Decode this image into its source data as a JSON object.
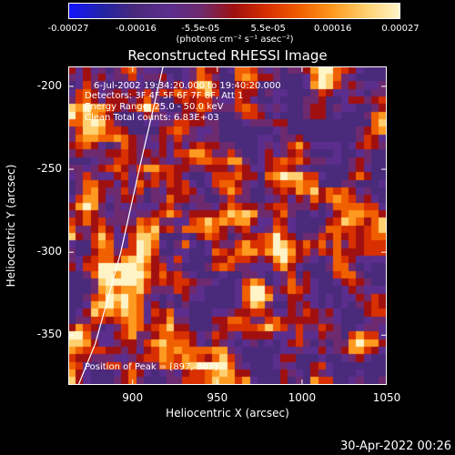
{
  "colorbar": {
    "tick_labels": [
      "-0.00027",
      "-0.00016",
      "-5.5e-05",
      "5.5e-05",
      "0.00016",
      "0.00027"
    ],
    "tick_values": [
      -0.00027,
      -0.00016,
      -5.5e-05,
      5.5e-05,
      0.00016,
      0.00027
    ],
    "range": [
      -0.00027,
      0.00027
    ],
    "unit_label": "(photons cm⁻² s⁻¹ asec⁻²)"
  },
  "chart_data": {
    "type": "heatmap",
    "title": "Reconstructed RHESSI Image",
    "xlabel": "Heliocentric X (arcsec)",
    "ylabel": "Heliocentric Y (arcsec)",
    "xlim": [
      862,
      1050
    ],
    "ylim": [
      -380,
      -188
    ],
    "x_ticks": [
      900,
      950,
      1000,
      1050
    ],
    "y_ticks": [
      -200,
      -250,
      -300,
      -350
    ],
    "x_tick_labels": [
      "900",
      "950",
      "1000",
      "1050"
    ],
    "y_tick_labels": [
      "-200",
      "-250",
      "-300",
      "-350"
    ],
    "colormap": [
      "#1414ff",
      "#2323a8",
      "#4a2a7a",
      "#5b2e8e",
      "#6e2a6e",
      "#a01010",
      "#d83000",
      "#f06000",
      "#ff9a20",
      "#ffd070",
      "#fff4c8"
    ],
    "peak": {
      "x": 897,
      "y": -307
    },
    "limb": [
      [
        918,
        -188
      ],
      [
        905,
        -245
      ],
      [
        893,
        -300
      ],
      [
        878,
        -355
      ],
      [
        868,
        -380
      ]
    ],
    "annotations": {
      "time": "6-Jul-2002 19:34:20.000 to 19:40:20.000",
      "detectors": "Detectors: 3F 4F 5F 6F 7F 8F, Att 1",
      "energy": "Energy Range: 25.0 - 50.0 keV",
      "method": "Clean     Total counts: 6.83E+03",
      "peak_text": "Position of Peak = [897,-307]"
    }
  },
  "footer": {
    "timestamp": "30-Apr-2022 00:26"
  }
}
